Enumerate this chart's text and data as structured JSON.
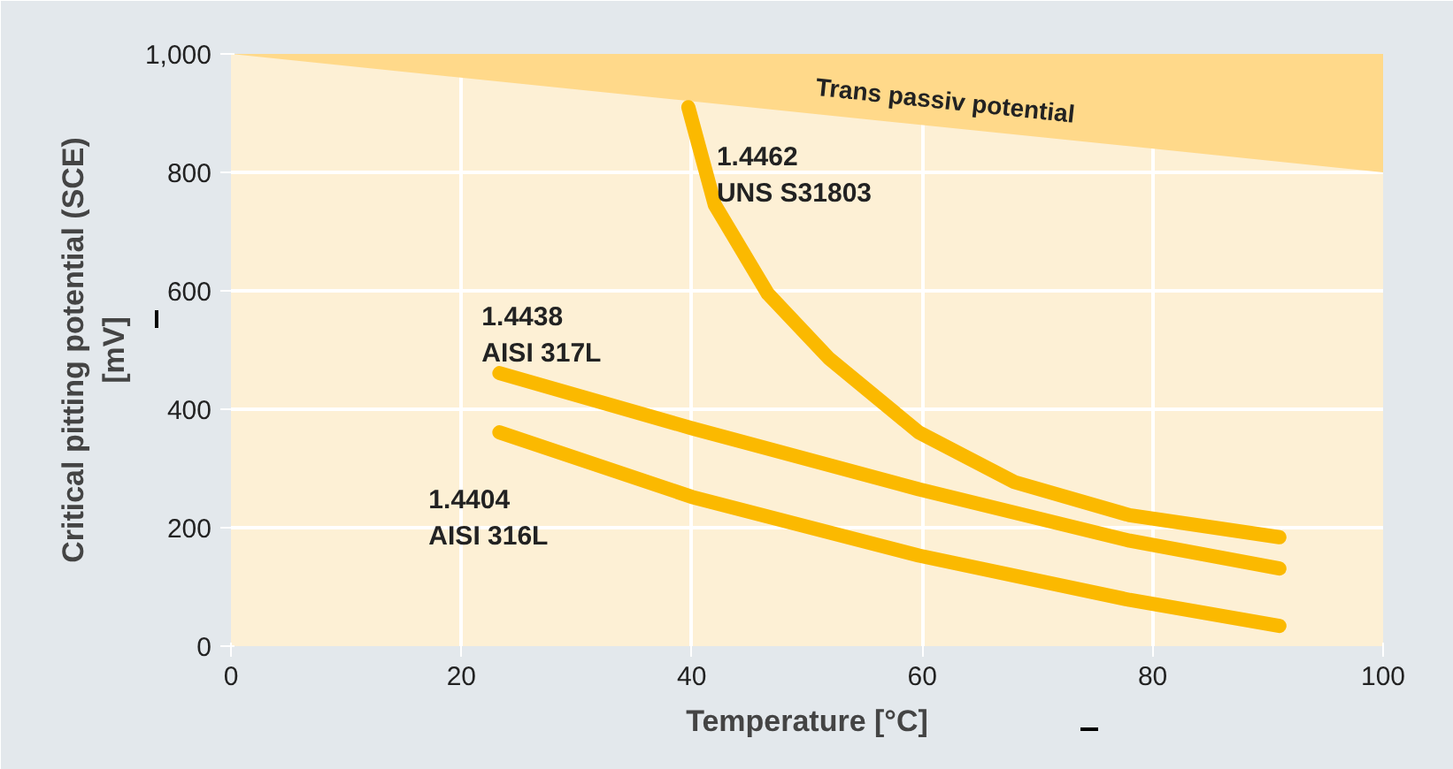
{
  "chart_data": {
    "type": "line",
    "xlabel": "Temperature [°C]",
    "ylabel": "Critical pitting potential (SCE)\n[mV]",
    "xlim": [
      0,
      100
    ],
    "ylim": [
      0,
      1000
    ],
    "xticks": [
      0,
      20,
      40,
      60,
      80,
      100
    ],
    "yticks": [
      0,
      200,
      400,
      600,
      800,
      {
        "value": 1000,
        "label": "1,000"
      }
    ],
    "grid": true,
    "series": [
      {
        "type": "area",
        "name": "Trans passiv potential",
        "color": "#ffd98a",
        "x": [
          0,
          100
        ],
        "values": [
          1000,
          800
        ]
      },
      {
        "name": "1.4462\nUNS S31803",
        "color": "#fbb900",
        "x": [
          39.7,
          42,
          46.6,
          51.9,
          59.7,
          68,
          78,
          91
        ],
        "values": [
          910,
          745,
          595,
          486,
          361,
          277,
          221,
          184
        ]
      },
      {
        "name": "1.4438\nAISI 317L",
        "color": "#fbb900",
        "x": [
          23.3,
          40,
          59.7,
          78,
          91
        ],
        "values": [
          461,
          368,
          265,
          178,
          131
        ]
      },
      {
        "name": "1.4404\nAISI 316L",
        "color": "#fbb900",
        "x": [
          23.3,
          40,
          59.7,
          78,
          91
        ],
        "values": [
          361,
          252,
          153,
          78,
          34
        ]
      }
    ]
  }
}
